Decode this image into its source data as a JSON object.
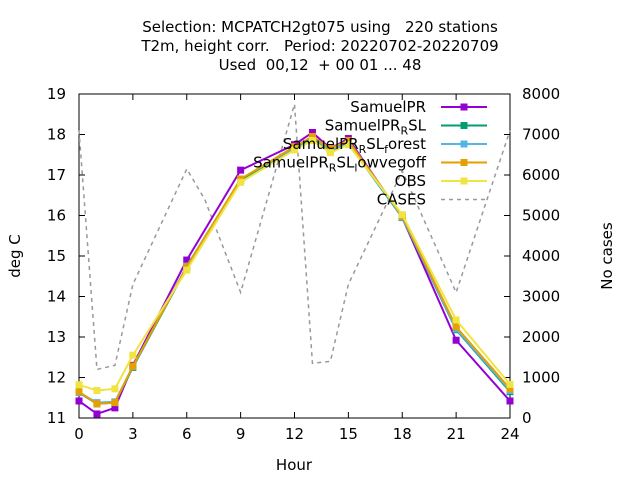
{
  "title": {
    "line1": "Selection: MCPATCH2gt075 using   220 stations",
    "line2": "T2m, height corr.   Period: 20220702-20220709",
    "line3": "Used  00,12  + 00 01 ... 48"
  },
  "chart_data": {
    "type": "line",
    "xlabel": "Hour",
    "ylabel": "deg C",
    "y2label": "No cases",
    "xlim": [
      0,
      24
    ],
    "ylim": [
      11,
      19
    ],
    "y2lim": [
      0,
      8000
    ],
    "xticks": [
      0,
      3,
      6,
      9,
      12,
      15,
      18,
      21,
      24
    ],
    "yticks": [
      11,
      12,
      13,
      14,
      15,
      16,
      17,
      18,
      19
    ],
    "y2ticks": [
      0,
      1000,
      2000,
      3000,
      4000,
      5000,
      6000,
      7000,
      8000
    ],
    "grid": false,
    "legend_position": "top-right",
    "x": [
      0,
      1,
      2,
      3,
      6,
      9,
      12,
      13,
      14,
      15,
      18,
      21,
      24
    ],
    "series": [
      {
        "name": "SamuelPR",
        "color": "#9400d3",
        "marker": "square",
        "values": [
          11.42,
          11.1,
          11.25,
          12.3,
          14.9,
          17.12,
          17.75,
          18.05,
          17.65,
          17.9,
          15.95,
          12.92,
          11.42
        ]
      },
      {
        "name": "SamuelPR_RSL",
        "color": "#009e73",
        "marker": "square",
        "values": [
          11.63,
          11.35,
          11.38,
          12.25,
          14.72,
          16.88,
          17.65,
          17.9,
          17.6,
          17.78,
          15.95,
          13.18,
          11.65
        ]
      },
      {
        "name": "SamuelPR_RSL_forest",
        "color": "#56b4e9",
        "marker": "square",
        "values": [
          11.63,
          11.38,
          11.4,
          12.27,
          14.75,
          16.9,
          17.68,
          17.92,
          17.62,
          17.8,
          15.96,
          13.2,
          11.68
        ]
      },
      {
        "name": "SamuelPR_RSL_lowvegoff",
        "color": "#e69f00",
        "marker": "square",
        "values": [
          11.65,
          11.35,
          11.38,
          12.28,
          14.73,
          16.9,
          17.7,
          17.95,
          17.65,
          17.85,
          15.98,
          13.25,
          11.72
        ]
      },
      {
        "name": "OBS",
        "color": "#f0e442",
        "marker": "square",
        "values": [
          11.82,
          11.68,
          11.72,
          12.55,
          14.65,
          16.82,
          17.62,
          17.85,
          17.55,
          17.75,
          16.02,
          13.42,
          11.83
        ]
      },
      {
        "name": "CASES",
        "color": "#999999",
        "axis": "y2",
        "dashed": true,
        "x": [
          0,
          1,
          2,
          3,
          6,
          7,
          9,
          12,
          13,
          14,
          15,
          18,
          21,
          24
        ],
        "values": [
          7100,
          1200,
          1300,
          3300,
          6150,
          5400,
          3100,
          7750,
          1350,
          1400,
          3300,
          6100,
          3100,
          7100
        ]
      }
    ],
    "legend": [
      {
        "label": "SamuelPR",
        "base": "SamuelPR",
        "sub": "",
        "sub2": "",
        "after": "",
        "after2": ""
      },
      {
        "label": "SamuelPR_RSL",
        "base": "SamuelPR",
        "sub": "R",
        "after": "SL",
        "sub2": "",
        "after2": ""
      },
      {
        "label": "SamuelPR_RSL_forest",
        "base": "SamuelPR",
        "sub": "R",
        "after": "SL",
        "sub2": "f",
        "after2": "orest"
      },
      {
        "label": "SamuelPR_RSL_lowvegoff",
        "base": "SamuelPR",
        "sub": "R",
        "after": "SL",
        "sub2": "l",
        "after2": "owvegoff"
      },
      {
        "label": "OBS",
        "base": "OBS",
        "sub": "",
        "sub2": "",
        "after": "",
        "after2": ""
      },
      {
        "label": "CASES",
        "base": "CASES",
        "sub": "",
        "sub2": "",
        "after": "",
        "after2": ""
      }
    ]
  }
}
